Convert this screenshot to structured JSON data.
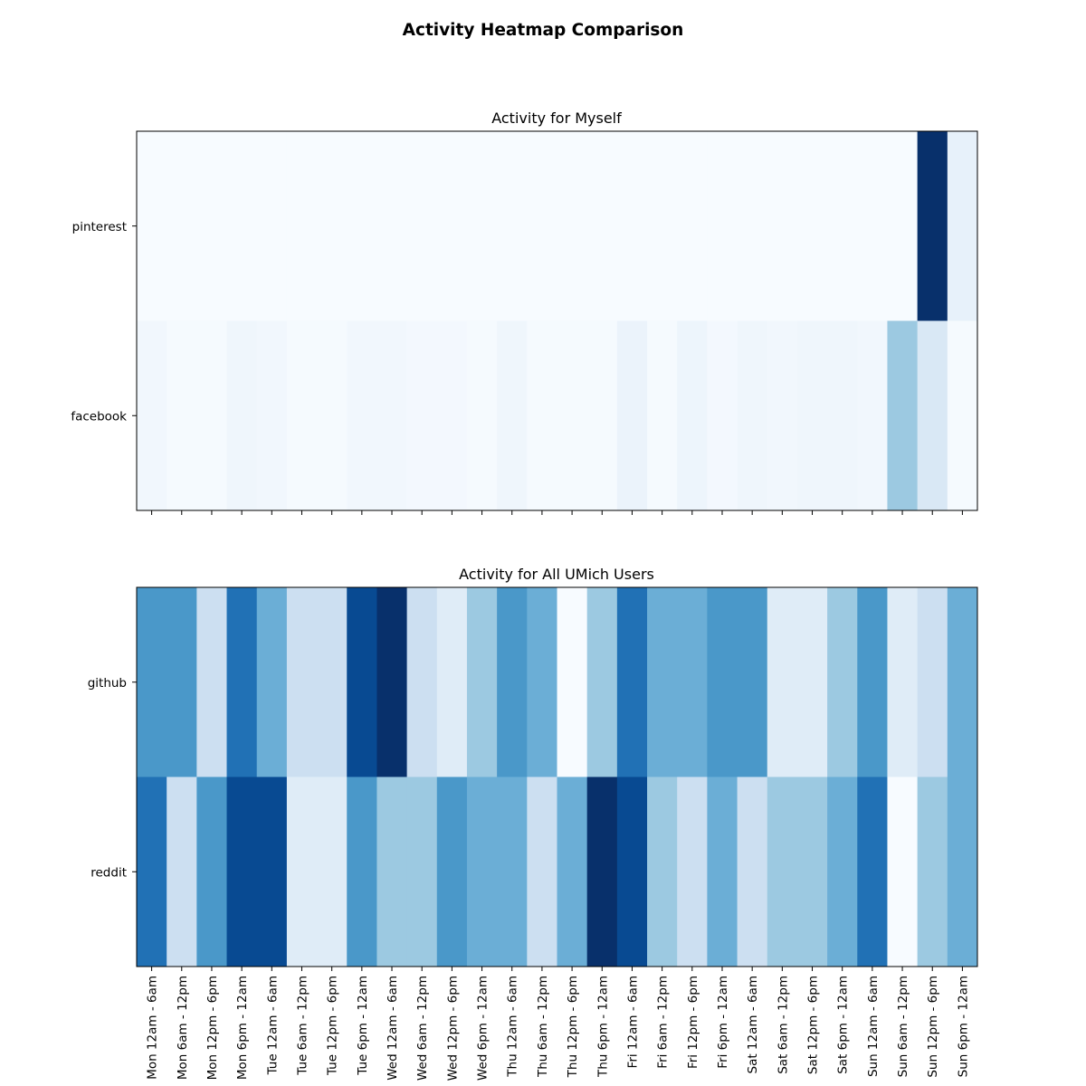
{
  "figure_title": "Activity Heatmap Comparison",
  "chart_data": [
    {
      "type": "heatmap",
      "title": "Activity for Myself",
      "colormap": "Blues",
      "vmin": 0,
      "vmax": 1,
      "rows": [
        "pinterest",
        "facebook"
      ],
      "categories": [
        "Mon 12am - 6am",
        "Mon 6am - 12pm",
        "Mon 12pm - 6pm",
        "Mon 6pm - 12am",
        "Tue 12am - 6am",
        "Tue 6am - 12pm",
        "Tue 12pm - 6pm",
        "Tue 6pm - 12am",
        "Wed 12am - 6am",
        "Wed 6am - 12pm",
        "Wed 12pm - 6pm",
        "Wed 6pm - 12am",
        "Thu 12am - 6am",
        "Thu 6am - 12pm",
        "Thu 12pm - 6pm",
        "Thu 6pm - 12am",
        "Fri 12am - 6am",
        "Fri 6am - 12pm",
        "Fri 12pm - 6pm",
        "Fri 6pm - 12am",
        "Sat 12am - 6am",
        "Sat 6am - 12pm",
        "Sat 12pm - 6pm",
        "Sat 6pm - 12am",
        "Sun 12am - 6am",
        "Sun 6am - 12pm",
        "Sun 12pm - 6pm",
        "Sun 6pm - 12am"
      ],
      "values": [
        [
          0,
          0,
          0,
          0,
          0,
          0,
          0,
          0,
          0,
          0,
          0,
          0,
          0,
          0,
          0,
          0,
          0,
          0,
          0,
          0,
          0,
          0,
          0,
          0,
          0,
          0,
          1.0,
          0.08
        ],
        [
          0.03,
          0.01,
          0.01,
          0.04,
          0.03,
          0.01,
          0.01,
          0.03,
          0.03,
          0.02,
          0.02,
          0.01,
          0.04,
          0.01,
          0.01,
          0.01,
          0.06,
          0.01,
          0.05,
          0.02,
          0.04,
          0.03,
          0.04,
          0.04,
          0.03,
          0.38,
          0.15,
          0.01
        ]
      ],
      "show_xtick_labels": false
    },
    {
      "type": "heatmap",
      "title": "Activity for All UMich Users",
      "colormap": "Blues",
      "vmin": 0,
      "vmax": 1,
      "rows": [
        "github",
        "reddit"
      ],
      "categories": [
        "Mon 12am - 6am",
        "Mon 6am - 12pm",
        "Mon 12pm - 6pm",
        "Mon 6pm - 12am",
        "Tue 12am - 6am",
        "Tue 6am - 12pm",
        "Tue 12pm - 6pm",
        "Tue 6pm - 12am",
        "Wed 12am - 6am",
        "Wed 6am - 12pm",
        "Wed 12pm - 6pm",
        "Wed 6pm - 12am",
        "Thu 12am - 6am",
        "Thu 6am - 12pm",
        "Thu 12pm - 6pm",
        "Thu 6pm - 12am",
        "Fri 12am - 6am",
        "Fri 6am - 12pm",
        "Fri 12pm - 6pm",
        "Fri 6pm - 12am",
        "Sat 12am - 6am",
        "Sat 6am - 12pm",
        "Sat 12pm - 6pm",
        "Sat 6pm - 12am",
        "Sun 12am - 6am",
        "Sun 6am - 12pm",
        "Sun 12pm - 6pm",
        "Sun 6pm - 12am"
      ],
      "values": [
        [
          0.6,
          0.6,
          0.22,
          0.75,
          0.5,
          0.22,
          0.22,
          0.9,
          1.0,
          0.22,
          0.12,
          0.38,
          0.6,
          0.5,
          0.0,
          0.38,
          0.75,
          0.5,
          0.5,
          0.6,
          0.6,
          0.12,
          0.12,
          0.38,
          0.6,
          0.12,
          0.22,
          0.5
        ],
        [
          0.75,
          0.22,
          0.6,
          0.9,
          0.9,
          0.12,
          0.12,
          0.6,
          0.38,
          0.38,
          0.6,
          0.5,
          0.5,
          0.22,
          0.5,
          1.0,
          0.9,
          0.38,
          0.22,
          0.5,
          0.22,
          0.38,
          0.38,
          0.5,
          0.75,
          0.0,
          0.38,
          0.5
        ]
      ],
      "show_xtick_labels": true
    }
  ]
}
